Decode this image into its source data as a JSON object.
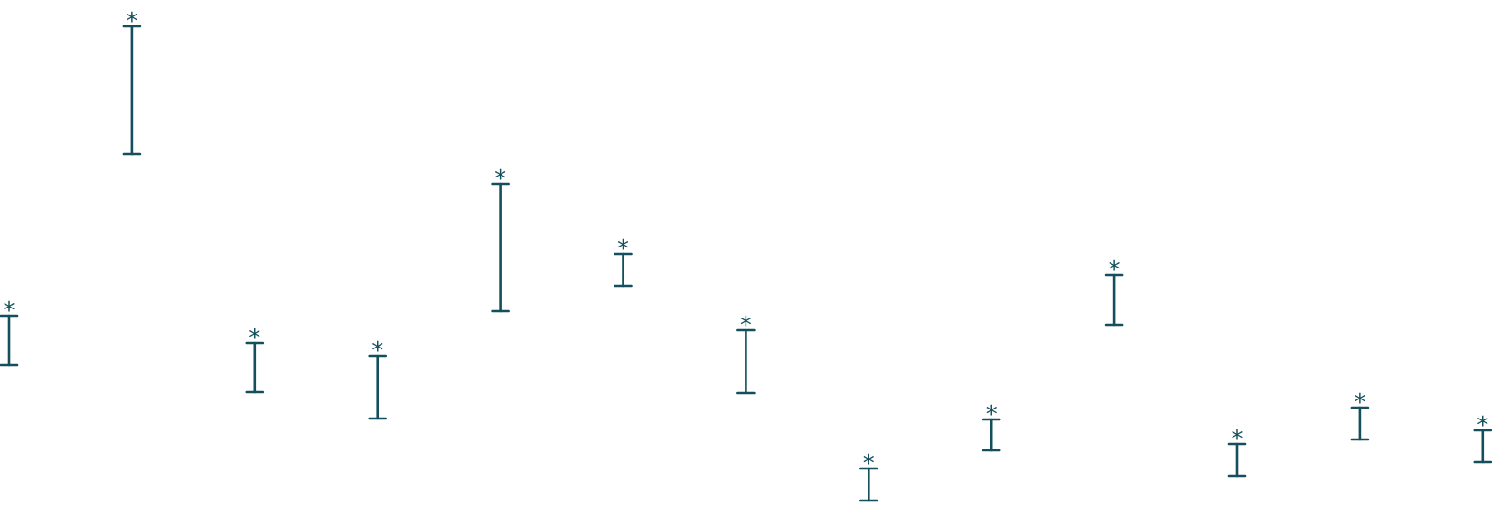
{
  "chart_data": {
    "type": "errorbar",
    "title": "",
    "xlabel": "",
    "ylabel": "",
    "color": "#134f5c",
    "significance_marker": "*",
    "ylim": [
      0,
      577
    ],
    "points": [
      {
        "low": 176,
        "high": 230,
        "label": "*"
      },
      {
        "low": 408,
        "high": 548,
        "label": "*"
      },
      {
        "low": 146,
        "high": 200,
        "label": "*"
      },
      {
        "low": 117,
        "high": 186,
        "label": "*"
      },
      {
        "low": 235,
        "high": 375,
        "label": "*"
      },
      {
        "low": 263,
        "high": 298,
        "label": "*"
      },
      {
        "low": 145,
        "high": 214,
        "label": "*"
      },
      {
        "low": 27,
        "high": 62,
        "label": "*"
      },
      {
        "low": 82,
        "high": 116,
        "label": "*"
      },
      {
        "low": 220,
        "high": 275,
        "label": "*"
      },
      {
        "low": 54,
        "high": 89,
        "label": "*"
      },
      {
        "low": 94,
        "high": 129,
        "label": "*"
      },
      {
        "low": 69,
        "high": 104,
        "label": "*"
      }
    ]
  }
}
